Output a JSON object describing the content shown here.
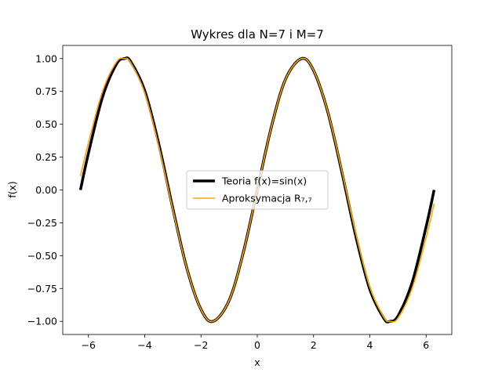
{
  "chart_data": {
    "type": "line",
    "title": "Wykres dla N=7 i M=7",
    "xlabel": "x",
    "ylabel": "f(x)",
    "xlim": [
      -6.912,
      6.912
    ],
    "ylim": [
      -1.1,
      1.1
    ],
    "xticks": [
      -6,
      -4,
      -2,
      0,
      2,
      4,
      6
    ],
    "xtick_labels": [
      "−6",
      "−4",
      "−2",
      "0",
      "2",
      "4",
      "6"
    ],
    "yticks": [
      -1.0,
      -0.75,
      -0.5,
      -0.25,
      0.0,
      0.25,
      0.5,
      0.75,
      1.0
    ],
    "ytick_labels": [
      "−1.00",
      "−0.75",
      "−0.50",
      "−0.25",
      "0.00",
      "0.25",
      "0.50",
      "0.75",
      "1.00"
    ],
    "grid": false,
    "legend_position": "center",
    "series": [
      {
        "name": "Teoria f(x)=sin(x)",
        "color": "#000000",
        "x": [
          -6.283,
          -6.0,
          -5.5,
          -5.0,
          -4.712,
          -4.5,
          -4.0,
          -3.5,
          -3.0,
          -2.5,
          -2.0,
          -1.571,
          -1.0,
          -0.5,
          0.0,
          0.5,
          1.0,
          1.571,
          2.0,
          2.5,
          3.0,
          3.5,
          4.0,
          4.5,
          4.712,
          5.0,
          5.5,
          6.0,
          6.283
        ],
        "y": [
          0.0,
          0.279,
          0.706,
          0.959,
          1.0,
          0.978,
          0.757,
          0.351,
          -0.141,
          -0.598,
          -0.909,
          -1.0,
          -0.841,
          -0.479,
          0.0,
          0.479,
          0.841,
          1.0,
          0.909,
          0.598,
          0.141,
          -0.351,
          -0.757,
          -0.978,
          -1.0,
          -0.959,
          -0.706,
          -0.279,
          0.0
        ]
      },
      {
        "name": "Aproksymacja R₇,₇",
        "color": "#ffa500",
        "x": [
          -6.283,
          -6.0,
          -5.5,
          -5.0,
          -4.712,
          -4.5,
          -4.0,
          -3.5,
          -3.0,
          -2.5,
          -2.0,
          -1.571,
          -1.0,
          -0.5,
          0.0,
          0.5,
          1.0,
          1.571,
          2.0,
          2.5,
          3.0,
          3.5,
          4.0,
          4.5,
          4.712,
          5.0,
          5.5,
          6.0,
          6.283
        ],
        "y": [
          0.105,
          0.36,
          0.75,
          0.975,
          1.0,
          0.97,
          0.74,
          0.33,
          -0.15,
          -0.6,
          -0.91,
          -1.0,
          -0.841,
          -0.479,
          0.0,
          0.479,
          0.841,
          1.0,
          0.91,
          0.6,
          0.15,
          -0.33,
          -0.74,
          -0.97,
          -1.0,
          -0.975,
          -0.75,
          -0.36,
          -0.105
        ]
      }
    ]
  }
}
